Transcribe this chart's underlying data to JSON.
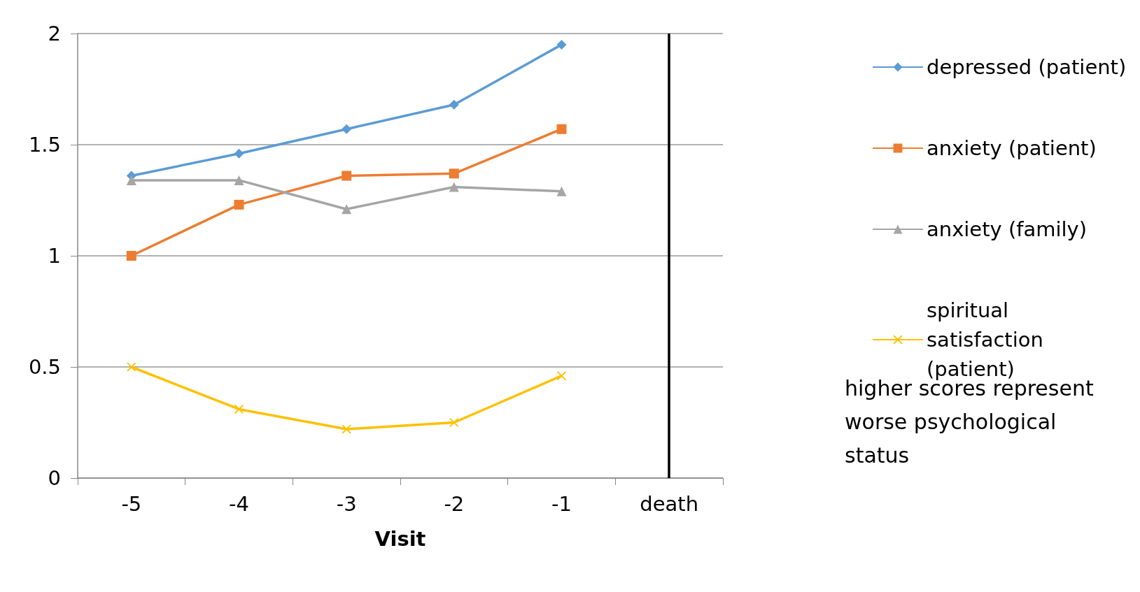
{
  "chart_data": {
    "type": "line",
    "categories": [
      "-5",
      "-4",
      "-3",
      "-2",
      "-1",
      "death"
    ],
    "xlabel": "Visit",
    "ylim": [
      0,
      2
    ],
    "yticks": [
      0,
      0.5,
      1,
      1.5,
      2
    ],
    "grid": "y",
    "legend": "right",
    "series": [
      {
        "name": "depressed (patient)",
        "color": "#5b9bd5",
        "marker": "diamond",
        "values": [
          1.36,
          1.46,
          1.57,
          1.68,
          1.95,
          null
        ]
      },
      {
        "name": "anxiety (patient)",
        "color": "#ed7d31",
        "marker": "square",
        "values": [
          1.0,
          1.23,
          1.36,
          1.37,
          1.57,
          null
        ]
      },
      {
        "name": "anxiety (family)",
        "color": "#a5a5a5",
        "marker": "triangle",
        "values": [
          1.34,
          1.34,
          1.21,
          1.31,
          1.29,
          null
        ]
      },
      {
        "name": "spiritual satisfaction (patient)",
        "color": "#ffc000",
        "marker": "cross",
        "values": [
          0.5,
          0.31,
          0.22,
          0.25,
          0.46,
          null
        ]
      }
    ],
    "ref_lines": [
      {
        "axis": "x",
        "value": "death",
        "color": "#000000"
      }
    ],
    "annotations": [
      "higher scores represent worse psychological status"
    ]
  }
}
